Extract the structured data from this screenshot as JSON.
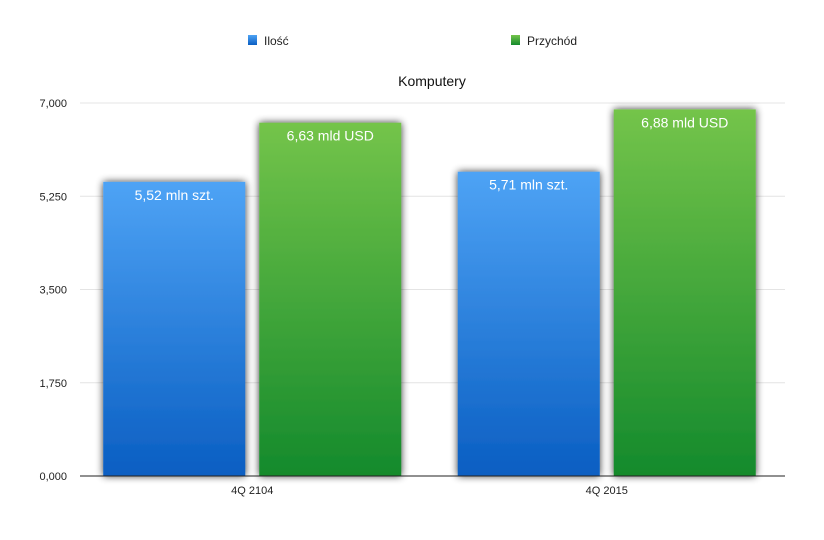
{
  "chart_data": {
    "type": "bar",
    "title": "Komputery",
    "categories": [
      "4Q 2104",
      "4Q 2015"
    ],
    "series": [
      {
        "name": "Ilość",
        "values": [
          5.52,
          5.71
        ],
        "data_labels": [
          "5,52 mln szt.",
          "5,71 mln szt."
        ],
        "color_top": "#4ea3f5",
        "color_bottom": "#0a5ec2",
        "legend_color": "#2f7fdc"
      },
      {
        "name": "Przychód",
        "values": [
          6.63,
          6.88
        ],
        "data_labels": [
          "6,63 mld USD",
          "6,88 mld USD"
        ],
        "color_top": "#74c44a",
        "color_bottom": "#148a2c",
        "legend_color": "#2f9a3a"
      }
    ],
    "ylim": [
      0,
      7
    ],
    "yticks": [
      {
        "value": 0,
        "label": "0,000"
      },
      {
        "value": 1.75,
        "label": "1,750"
      },
      {
        "value": 3.5,
        "label": "3,500"
      },
      {
        "value": 5.25,
        "label": "5,250"
      },
      {
        "value": 7,
        "label": "7,000"
      }
    ],
    "xlabel": "",
    "ylabel": "",
    "grid": true,
    "legend_position": "top-center"
  }
}
